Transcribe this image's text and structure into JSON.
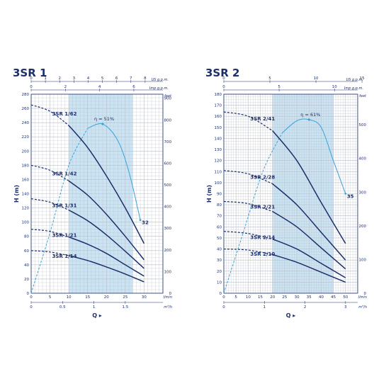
{
  "chart_data": [
    {
      "type": "line",
      "title": "3SR 1",
      "ylabel": "H (m)",
      "xlabel": "Q",
      "x_units": [
        "l/min",
        "m³/h"
      ],
      "y_right_unit": "feet",
      "top_units": [
        "US g.p.m.",
        "Imp g.p.m."
      ],
      "xlim": [
        0,
        35
      ],
      "ylim": [
        0,
        280
      ],
      "x_ticks_lmin": [
        0,
        5,
        10,
        15,
        20,
        25,
        30
      ],
      "x_ticks_m3h": [
        "0",
        "0.5",
        "1",
        "1.5"
      ],
      "x_ticks_usgpm": [
        0,
        1,
        2,
        3,
        4,
        5,
        6,
        7,
        8
      ],
      "x_ticks_impgpm": [
        0,
        2,
        4,
        6
      ],
      "y_ticks": [
        0,
        20,
        40,
        60,
        80,
        100,
        120,
        140,
        160,
        180,
        200,
        220,
        240,
        260,
        280
      ],
      "y_ticks_feet": [
        0,
        100,
        200,
        300,
        400,
        500,
        600,
        700,
        800,
        900
      ],
      "band": [
        10,
        27
      ],
      "series": [
        {
          "name": "3SR 1/62",
          "x": [
            0,
            5,
            10,
            15,
            20,
            25,
            30
          ],
          "y": [
            265,
            256,
            236,
            205,
            165,
            120,
            70
          ]
        },
        {
          "name": "3SR 1/42",
          "x": [
            0,
            5,
            10,
            15,
            20,
            25,
            30
          ],
          "y": [
            180,
            173,
            158,
            138,
            111,
            80,
            47
          ]
        },
        {
          "name": "3SR 1/31",
          "x": [
            0,
            5,
            10,
            15,
            20,
            25,
            30
          ],
          "y": [
            133,
            128,
            117,
            102,
            82,
            59,
            35
          ]
        },
        {
          "name": "3SR 1/21",
          "x": [
            0,
            5,
            10,
            15,
            20,
            25,
            30
          ],
          "y": [
            90,
            87,
            79,
            69,
            56,
            40,
            24
          ]
        },
        {
          "name": "3SR 1/14",
          "x": [
            0,
            5,
            10,
            15,
            20,
            25,
            30
          ],
          "y": [
            60,
            58,
            53,
            46,
            37,
            27,
            16
          ]
        }
      ],
      "efficiency": {
        "label": "η = 51%",
        "end_label": "32",
        "x": [
          0,
          5,
          10,
          15,
          19,
          23,
          26,
          29
        ],
        "y": [
          0,
          85,
          180,
          232,
          238,
          215,
          170,
          103
        ]
      }
    },
    {
      "type": "line",
      "title": "3SR 2",
      "ylabel": "H (m)",
      "xlabel": "Q",
      "x_units": [
        "l/min",
        "m³/h"
      ],
      "y_right_unit": "feet",
      "top_units": [
        "US g.p.m.",
        "Imp g.p.m."
      ],
      "xlim": [
        0,
        55
      ],
      "ylim": [
        0,
        180
      ],
      "x_ticks_lmin": [
        0,
        5,
        10,
        15,
        20,
        25,
        30,
        35,
        40,
        45,
        50
      ],
      "x_ticks_m3h": [
        "0",
        "1",
        "2",
        "3"
      ],
      "x_ticks_usgpm": [
        0,
        5,
        10,
        15
      ],
      "x_ticks_impgpm": [
        0,
        5,
        10
      ],
      "y_ticks": [
        0,
        10,
        20,
        30,
        40,
        50,
        60,
        70,
        80,
        90,
        100,
        110,
        120,
        130,
        140,
        150,
        160,
        170,
        180
      ],
      "y_ticks_feet": [
        0,
        100,
        200,
        300,
        400,
        500
      ],
      "band": [
        20,
        45
      ],
      "series": [
        {
          "name": "3SR 2/41",
          "x": [
            0,
            10,
            20,
            30,
            40,
            50
          ],
          "y": [
            164,
            160,
            147,
            120,
            82,
            45
          ]
        },
        {
          "name": "3SR 2/28",
          "x": [
            0,
            10,
            20,
            30,
            40,
            50
          ],
          "y": [
            111,
            108,
            99,
            80,
            55,
            30
          ]
        },
        {
          "name": "3SR 2/21",
          "x": [
            0,
            10,
            20,
            30,
            40,
            50
          ],
          "y": [
            83,
            81,
            74,
            60,
            41,
            22
          ]
        },
        {
          "name": "3SR 2/14",
          "x": [
            0,
            10,
            20,
            30,
            40,
            50
          ],
          "y": [
            56,
            54,
            49,
            40,
            27,
            14
          ]
        },
        {
          "name": "3SR 2/10",
          "x": [
            0,
            10,
            20,
            30,
            40,
            50
          ],
          "y": [
            40,
            39,
            35,
            28,
            19,
            10
          ]
        }
      ],
      "efficiency": {
        "label": "η = 61%",
        "end_label": "35",
        "x": [
          0,
          8,
          16,
          24,
          30,
          35,
          40,
          45,
          50
        ],
        "y": [
          0,
          55,
          110,
          145,
          156,
          157,
          150,
          120,
          90
        ]
      }
    }
  ],
  "colors": {
    "curve": "#1d2f6b",
    "efficiency": "#3aa3d6",
    "band": "#cbe4f3",
    "grid": "#b9bdc7",
    "text": "#1d2f6b"
  }
}
